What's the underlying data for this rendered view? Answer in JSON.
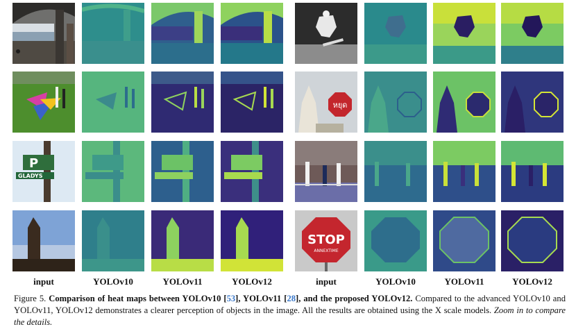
{
  "column_labels_left": [
    "input",
    "YOLOv10",
    "YOLOv11",
    "YOLOv12"
  ],
  "column_labels_right": [
    "input",
    "YOLOv10",
    "YOLOv11",
    "YOLOv12"
  ],
  "caption": {
    "figure_label": "Figure 5.",
    "bold_part1": "Comparison of heat maps between YOLOv10 [",
    "cite1": "53",
    "bold_part2": "], YOLOv11 [",
    "cite2": "28",
    "bold_part3": "], and the proposed YOLOv12.",
    "body": "Compared to the advanced YOLOv10 and YOLOv11, YOLOv12 demonstrates a clearer perception of objects in the image. All the results are obtained using the X scale models.",
    "italic": "Zoom in to compare the details."
  },
  "image_text": {
    "parking_sign": "P",
    "street_sign": "GLADYS",
    "stop_sign_thai": "หยุด",
    "stop_sign": "STOP",
    "stop_sign_sub": "ANNEXTIME"
  },
  "colors": {
    "heat_low": "#3b1f73",
    "heat_mid": "#2a8b8a",
    "heat_high": "#c9e03a",
    "heat_v10": "#3a8c8f",
    "citation": "#3a78c9"
  }
}
